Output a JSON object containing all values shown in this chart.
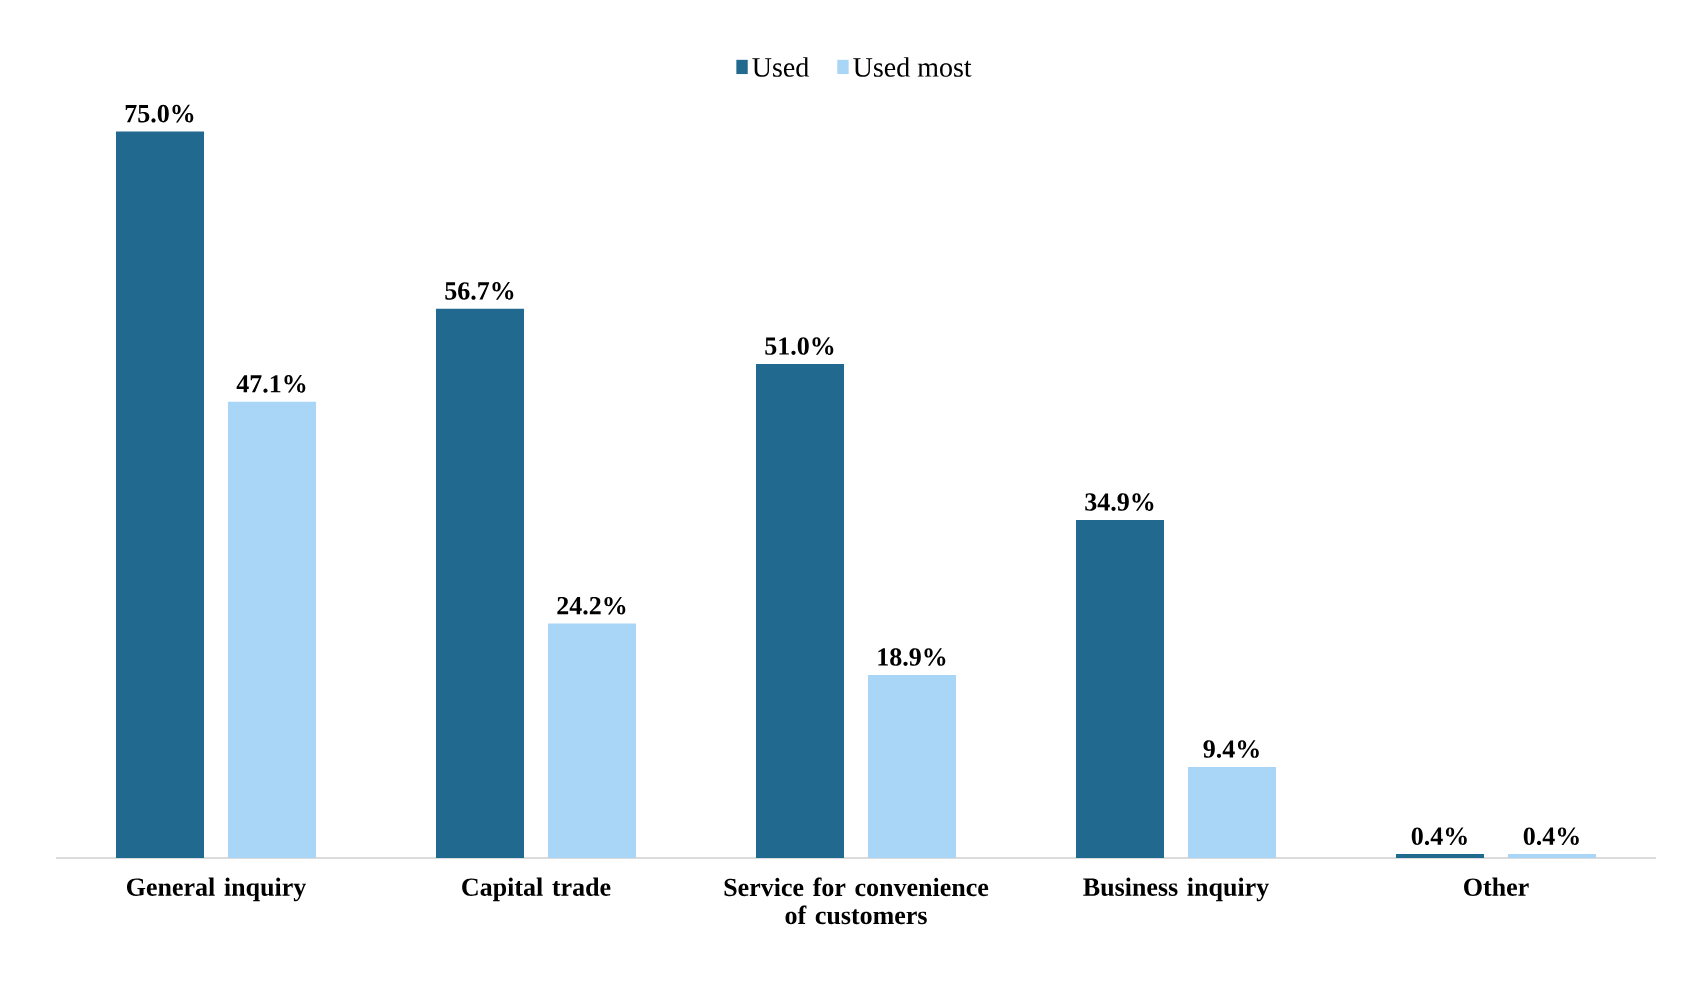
{
  "chart_data": {
    "type": "bar",
    "categories": [
      "General inquiry",
      "Capital trade",
      "Service for convenience of customers",
      "Business inquiry",
      "Other"
    ],
    "series": [
      {
        "name": "Used",
        "color": "#21698f",
        "values": [
          75.0,
          56.7,
          51.0,
          34.9,
          0.4
        ],
        "value_labels": [
          "75.0%",
          "56.7%",
          "51.0%",
          "34.9%",
          "0.4%"
        ]
      },
      {
        "name": "Used most",
        "color": "#a9d5f7",
        "values": [
          47.1,
          24.2,
          18.9,
          9.4,
          0.4
        ],
        "value_labels": [
          "47.1%",
          "24.2%",
          "18.9%",
          "9.4%",
          "0.4%"
        ]
      }
    ],
    "legend": "top"
  }
}
